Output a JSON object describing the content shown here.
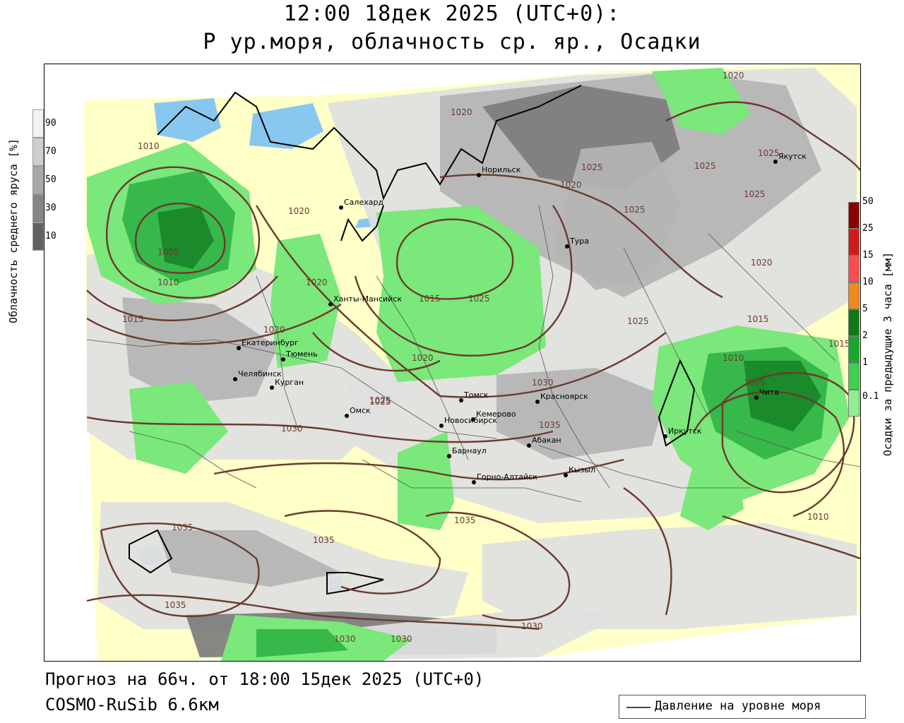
{
  "title": {
    "line1": "12:00 18дек 2025 (UTC+0):",
    "line2": "P ур.моря, облачность ср. яр., Осадки"
  },
  "footer": {
    "forecast": "Прогноз на 66ч. от 18:00 15дек 2025 (UTC+0)",
    "model": "COSMO-RuSib 6.6км"
  },
  "legend": {
    "pressure_label": "Давление на уровне моря",
    "pressure_color": "#6b3a2e"
  },
  "cloud_scale": {
    "label": "Облачность среднего яруса [%]",
    "ticks": [
      "90",
      "70",
      "50",
      "30",
      "10"
    ],
    "colors": [
      "#f2f2f2",
      "#cfcfcf",
      "#a8a8a8",
      "#858585",
      "#626262"
    ]
  },
  "precip_scale": {
    "label": "Осадки за предыдущие 3 часа [мм]",
    "ticks": [
      "50",
      "25",
      "15",
      "10",
      "5",
      "2",
      "1",
      "0.1"
    ],
    "colors": [
      "#8b0000",
      "#d21a1a",
      "#ff4d4d",
      "#f08a1a",
      "#0d7a1a",
      "#18a82a",
      "#3fd04f",
      "#8ff08f"
    ]
  },
  "colors": {
    "land": "#ffffc8",
    "water": "#88c8f0",
    "cloud_light": "#e0e0e0",
    "cloud_mid": "#b4b4b4",
    "cloud_dark": "#7c7c7c",
    "precip_light": "#7ae87a",
    "precip_mid": "#37b84a",
    "precip_dark": "#1a8a2a"
  },
  "cities": [
    {
      "name": "Салехард"
    },
    {
      "name": "Норильск"
    },
    {
      "name": "Тура"
    },
    {
      "name": "Якутск"
    },
    {
      "name": "Ханты-Мансийск"
    },
    {
      "name": "Екатеринбург"
    },
    {
      "name": "Тюмень"
    },
    {
      "name": "Челябинск"
    },
    {
      "name": "Курган"
    },
    {
      "name": "Омск"
    },
    {
      "name": "Новосибирск"
    },
    {
      "name": "Томск"
    },
    {
      "name": "Кемерово"
    },
    {
      "name": "Красноярск"
    },
    {
      "name": "Абакан"
    },
    {
      "name": "Кызыл"
    },
    {
      "name": "Барнаул"
    },
    {
      "name": "Горно-Алтайск"
    },
    {
      "name": "Иркутск"
    },
    {
      "name": "Чита"
    }
  ],
  "isobar_labels": [
    "1020",
    "1020",
    "1025",
    "1025",
    "1025",
    "1025",
    "1025",
    "1020",
    "1010",
    "1005",
    "1010",
    "1015",
    "1020",
    "1020",
    "1015",
    "1025",
    "1025",
    "1030",
    "1025",
    "1030",
    "1035",
    "1035",
    "1035",
    "1035",
    "1035",
    "1030",
    "1030",
    "1010",
    "1015",
    "1010",
    "1005",
    "1015",
    "1020",
    "1020",
    "1025",
    "1020",
    "1030"
  ]
}
